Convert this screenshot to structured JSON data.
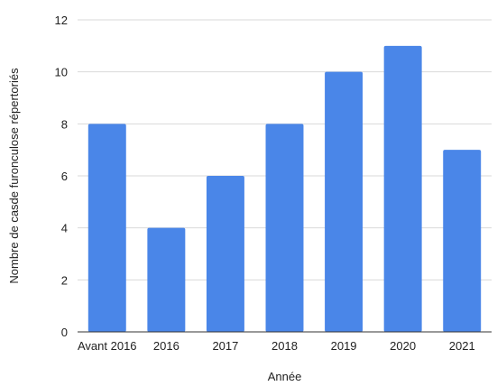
{
  "chart_data": {
    "type": "bar",
    "categories": [
      "Avant 2016",
      "2016",
      "2017",
      "2018",
      "2019",
      "2020",
      "2021"
    ],
    "series": [
      {
        "values": [
          8,
          4,
          6,
          8,
          10,
          11,
          7
        ]
      }
    ],
    "xlabel": "Année",
    "ylabel": "Nombre de casde furonculose répertoriés",
    "ylim": [
      0,
      12
    ],
    "yticks": [
      0,
      2,
      4,
      6,
      8,
      10,
      12
    ],
    "grid": true,
    "legend": "none",
    "colors": {
      "bar": "#4a86e8"
    }
  }
}
